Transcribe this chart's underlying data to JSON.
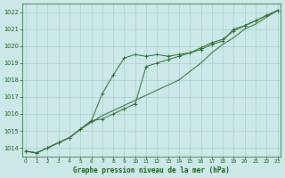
{
  "title": "Graphe pression niveau de la mer (hPa)",
  "x": [
    0,
    1,
    2,
    3,
    4,
    5,
    6,
    7,
    8,
    9,
    10,
    11,
    12,
    13,
    14,
    15,
    16,
    17,
    18,
    19,
    20,
    21,
    22,
    23
  ],
  "line1": [
    1013.8,
    1013.7,
    1014.0,
    1014.3,
    1014.6,
    1015.1,
    1015.5,
    1015.9,
    1016.2,
    1016.5,
    1016.8,
    1017.1,
    1017.4,
    1017.7,
    1018.0,
    1018.5,
    1019.0,
    1019.6,
    1020.1,
    1020.5,
    1021.0,
    1021.3,
    1021.7,
    1022.1
  ],
  "line2": [
    1013.8,
    1013.7,
    1014.0,
    1014.3,
    1014.6,
    1015.1,
    1015.6,
    1017.2,
    1018.3,
    1019.3,
    1019.5,
    1019.4,
    1019.5,
    1019.4,
    1019.5,
    1019.6,
    1019.8,
    1020.1,
    1020.3,
    1021.0,
    1021.2,
    1021.5,
    1021.8,
    1022.1
  ],
  "line3": [
    1013.8,
    1013.7,
    1014.0,
    1014.3,
    1014.6,
    1015.1,
    1015.6,
    1015.7,
    1016.0,
    1016.3,
    1016.6,
    1018.8,
    1019.0,
    1019.2,
    1019.4,
    1019.6,
    1019.9,
    1020.2,
    1020.4,
    1020.9,
    1021.2,
    1021.5,
    1021.8,
    1022.1
  ],
  "line_color": "#2d6a2d",
  "bg_color": "#cce8e8",
  "grid_color": "#aacfcf",
  "label_color": "#1a5c1a",
  "ylim": [
    1013.5,
    1022.5
  ],
  "yticks": [
    1014,
    1015,
    1016,
    1017,
    1018,
    1019,
    1020,
    1021,
    1022
  ],
  "xlim": [
    -0.3,
    23.3
  ],
  "xlabel": "Graphe pression niveau de la mer (hPa)"
}
